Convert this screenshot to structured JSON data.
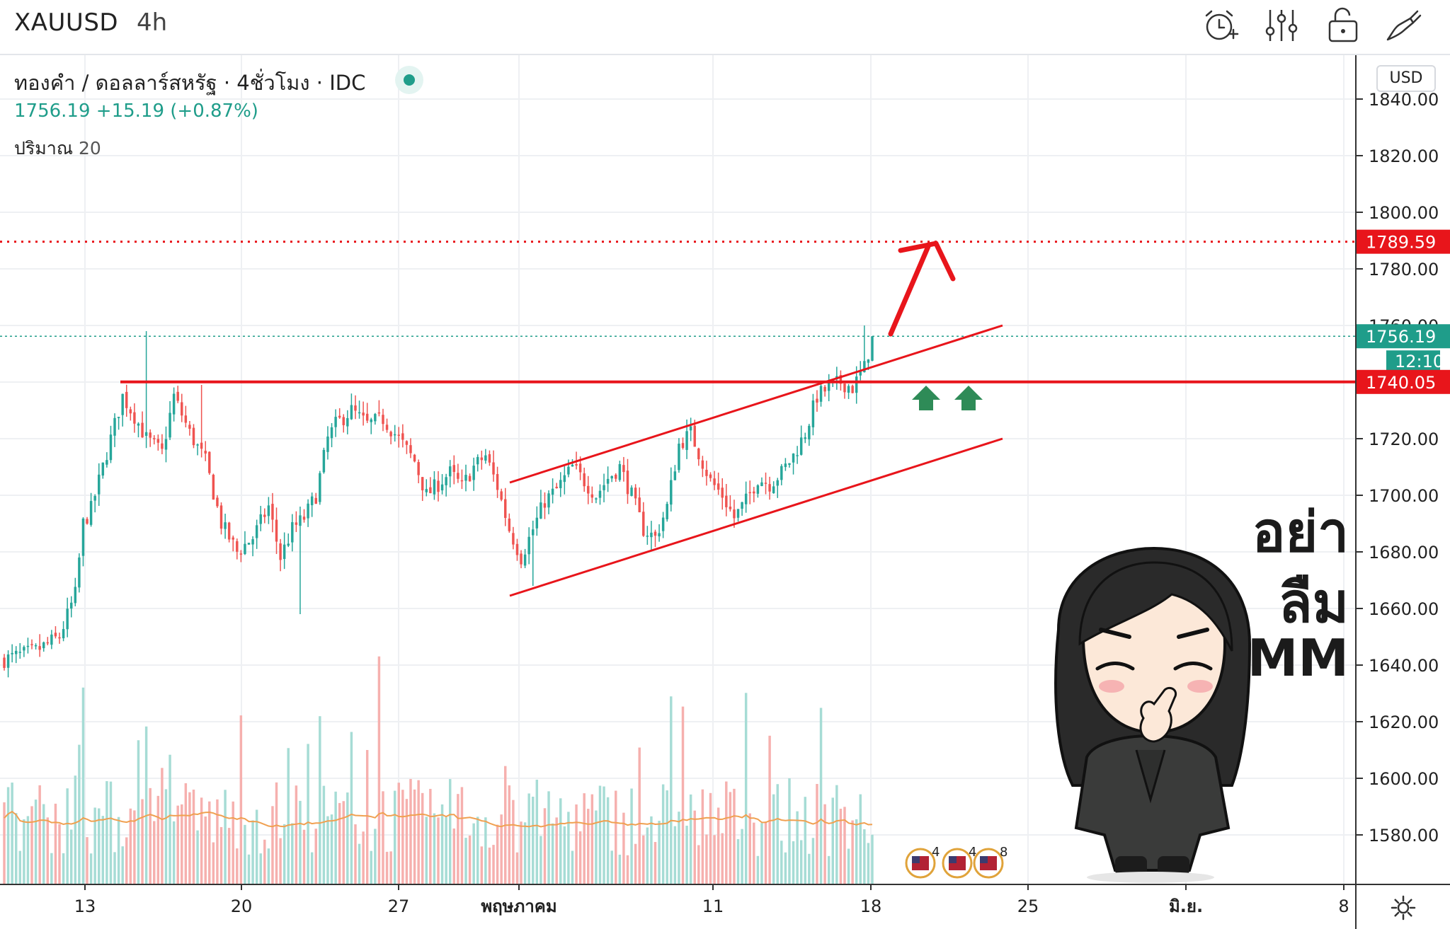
{
  "toolbar": {
    "symbol": "XAUUSD",
    "interval": "4h",
    "icons": [
      "alarm-add-icon",
      "indicators-icon",
      "lock-icon",
      "drawing-pen-icon"
    ]
  },
  "legend": {
    "title": "ทองคำ / ดอลลาร์สหรัฐ · 4ชั่วโมง · IDC",
    "price_line": "1756.19 +15.19 (+0.87%)",
    "volume_label": "ปริมาณ",
    "volume_value": "20"
  },
  "currency": "USD",
  "price_tags": {
    "resistance": "1789.59",
    "current": "1756.19",
    "countdown": "12:10",
    "support": "1740.05"
  },
  "sticker": {
    "line1": "อย่า",
    "line2": "ลืม",
    "line3": "MM"
  },
  "event_badges": [
    "4",
    "4",
    "8"
  ],
  "colors": {
    "up": "#26a69a",
    "down": "#ef5350",
    "annotation_red": "#e8151b",
    "ma": "#f0a050",
    "last_price": "#1f9d8a"
  },
  "chart_data": {
    "type": "candlestick",
    "symbol": "XAUUSD",
    "timeframe": "4h",
    "y_axis_ticks": [
      1840,
      1820,
      1800,
      1780,
      1760,
      1740,
      1720,
      1700,
      1680,
      1660,
      1640,
      1620,
      1600,
      1580
    ],
    "y_axis_tick_labels": [
      "1840.00",
      "1820.00",
      "1800.00",
      "1780.00",
      "1760.00",
      "1740.00",
      "1720.00",
      "1700.00",
      "1680.00",
      "1660.00",
      "1640.00",
      "1620.00",
      "1600.00",
      "1580.00"
    ],
    "x_axis_ticks": [
      "13",
      "20",
      "27",
      "พฤษภาคม",
      "11",
      "18",
      "25",
      "มิ.ย.",
      "8"
    ],
    "ylim": [
      1563,
      1857
    ],
    "last_price": 1756.19,
    "change": 15.19,
    "change_pct": 0.87,
    "levels": [
      {
        "name": "resistance (dotted)",
        "value": 1789.59
      },
      {
        "name": "support",
        "value": 1740.05
      }
    ],
    "price_path": [
      [
        0,
        1642
      ],
      [
        8,
        1645
      ],
      [
        14,
        1650
      ],
      [
        18,
        1665
      ],
      [
        20,
        1690
      ],
      [
        22,
        1695
      ],
      [
        26,
        1715
      ],
      [
        30,
        1735
      ],
      [
        33,
        1728
      ],
      [
        36,
        1720
      ],
      [
        40,
        1715
      ],
      [
        43,
        1735
      ],
      [
        47,
        1722
      ],
      [
        51,
        1712
      ],
      [
        55,
        1690
      ],
      [
        59,
        1680
      ],
      [
        63,
        1685
      ],
      [
        67,
        1696
      ],
      [
        70,
        1678
      ],
      [
        73,
        1688
      ],
      [
        76,
        1692
      ],
      [
        79,
        1700
      ],
      [
        82,
        1720
      ],
      [
        84,
        1725
      ],
      [
        88,
        1730
      ],
      [
        92,
        1725
      ],
      [
        96,
        1727
      ],
      [
        100,
        1720
      ],
      [
        104,
        1712
      ],
      [
        107,
        1700
      ],
      [
        110,
        1704
      ],
      [
        113,
        1708
      ],
      [
        116,
        1703
      ],
      [
        119,
        1710
      ],
      [
        122,
        1714
      ],
      [
        125,
        1703
      ],
      [
        128,
        1688
      ],
      [
        131,
        1678
      ],
      [
        134,
        1688
      ],
      [
        137,
        1698
      ],
      [
        140,
        1702
      ],
      [
        144,
        1710
      ],
      [
        147,
        1705
      ],
      [
        150,
        1700
      ],
      [
        153,
        1706
      ],
      [
        156,
        1710
      ],
      [
        159,
        1700
      ],
      [
        162,
        1688
      ],
      [
        165,
        1685
      ],
      [
        168,
        1696
      ],
      [
        171,
        1718
      ],
      [
        174,
        1722
      ],
      [
        176,
        1715
      ],
      [
        179,
        1705
      ],
      [
        182,
        1700
      ],
      [
        185,
        1692
      ],
      [
        188,
        1698
      ],
      [
        191,
        1706
      ],
      [
        194,
        1704
      ],
      [
        197,
        1708
      ],
      [
        200,
        1714
      ],
      [
        203,
        1722
      ],
      [
        206,
        1735
      ],
      [
        209,
        1738
      ],
      [
        212,
        1740
      ],
      [
        215,
        1738
      ],
      [
        218,
        1745
      ],
      [
        220,
        1756
      ]
    ]
  }
}
